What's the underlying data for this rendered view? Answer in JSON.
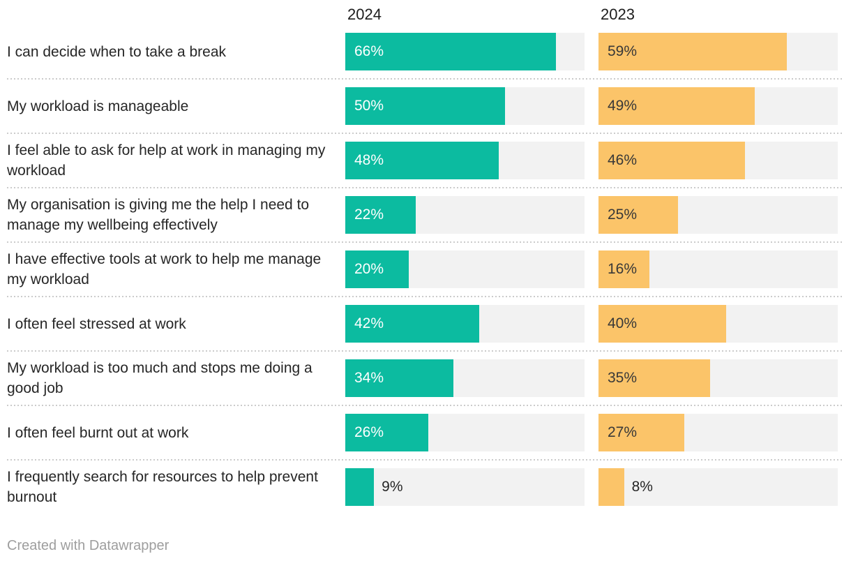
{
  "chart_data": {
    "type": "bar",
    "layout": "grouped-horizontal-bars-split-columns",
    "title": "",
    "columns": [
      "2024",
      "2023"
    ],
    "categories": [
      "I can decide when to take a break",
      "My workload is manageable",
      "I feel able to ask for help at work in managing my workload",
      "My organisation is giving me the help I need to manage my wellbeing effectively",
      "I have effective tools at work to help me manage my workload",
      "I often feel stressed at work",
      "My workload is too much and stops me doing a good job",
      "I often feel burnt out at work",
      "I frequently search for resources to help prevent burnout"
    ],
    "series": [
      {
        "name": "2024",
        "color": "#0cbba0",
        "label_color_inside": "#ffffff",
        "values": [
          66,
          50,
          48,
          22,
          20,
          42,
          34,
          26,
          9
        ]
      },
      {
        "name": "2023",
        "color": "#fbc469",
        "label_color_inside": "#383838",
        "values": [
          59,
          49,
          46,
          25,
          16,
          40,
          35,
          27,
          8
        ]
      }
    ],
    "value_suffix": "%",
    "axis_max": 75,
    "grid": false,
    "legend_position": "column-headers",
    "track_color": "#f2f2f2",
    "separator_color": "#cbcbcb",
    "outside_label_color": "#262626",
    "outside_label_threshold": 12
  },
  "footer": {
    "credit": "Created with Datawrapper"
  }
}
